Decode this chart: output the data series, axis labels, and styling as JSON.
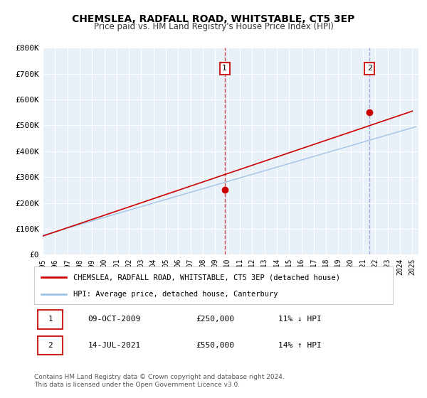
{
  "title": "CHEMSLEA, RADFALL ROAD, WHITSTABLE, CT5 3EP",
  "subtitle": "Price paid vs. HM Land Registry's House Price Index (HPI)",
  "xlabel": "",
  "ylabel": "",
  "ylim": [
    0,
    800000
  ],
  "xlim_start": 1995.0,
  "xlim_end": 2025.5,
  "background_color": "#ffffff",
  "plot_bg_color": "#e8f0f8",
  "grid_color": "#ffffff",
  "hpi_color": "#a0c4e8",
  "price_color": "#cc0000",
  "marker1_x": 2009.77,
  "marker1_y": 250000,
  "marker2_x": 2021.53,
  "marker2_y": 550000,
  "vline1_x": 2009.77,
  "vline2_x": 2021.53,
  "annotation1_label": "1",
  "annotation2_label": "2",
  "legend_line1": "CHEMSLEA, RADFALL ROAD, WHITSTABLE, CT5 3EP (detached house)",
  "legend_line2": "HPI: Average price, detached house, Canterbury",
  "table_row1_num": "1",
  "table_row1_date": "09-OCT-2009",
  "table_row1_price": "£250,000",
  "table_row1_hpi": "11% ↓ HPI",
  "table_row2_num": "2",
  "table_row2_date": "14-JUL-2021",
  "table_row2_price": "£550,000",
  "table_row2_hpi": "14% ↑ HPI",
  "footer": "Contains HM Land Registry data © Crown copyright and database right 2024.\nThis data is licensed under the Open Government Licence v3.0.",
  "yticks": [
    0,
    100000,
    200000,
    300000,
    400000,
    500000,
    600000,
    700000,
    800000
  ],
  "ytick_labels": [
    "£0",
    "£100K",
    "£200K",
    "£300K",
    "£400K",
    "£500K",
    "£600K",
    "£700K",
    "£800K"
  ]
}
